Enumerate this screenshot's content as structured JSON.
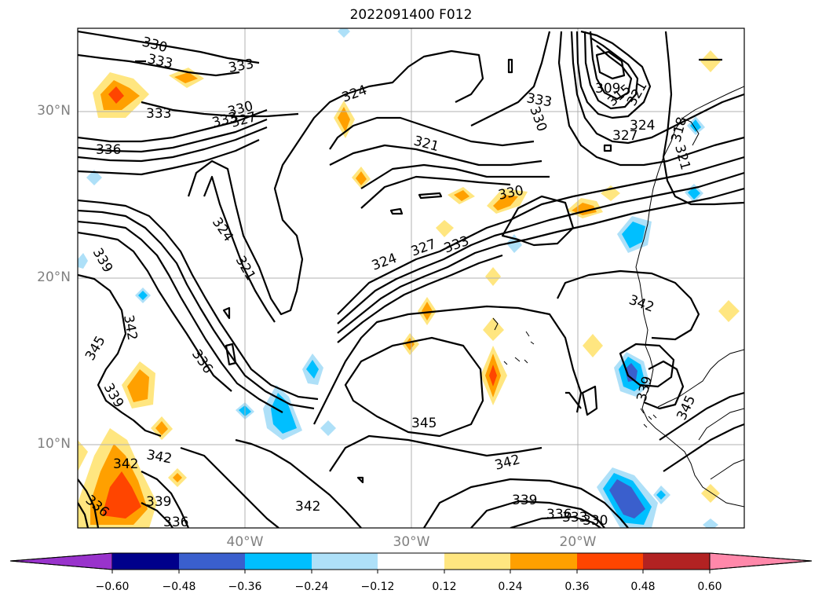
{
  "title": "2022091400 F012",
  "lat_labels": [
    "30°N",
    "20°N",
    "10°N"
  ],
  "lon_labels": [
    "40°W",
    "30°W",
    "20°W"
  ],
  "colorbar": {
    "ticks": [
      "−0.60",
      "−0.48",
      "−0.36",
      "−0.24",
      "−0.12",
      "0.12",
      "0.24",
      "0.36",
      "0.48",
      "0.60"
    ],
    "colors": [
      "#9933cc",
      "#00008b",
      "#3a5fcd",
      "#00bfff",
      "#aee0f8",
      "#ffffff",
      "#ffe680",
      "#ffa000",
      "#ff4500",
      "#b22222",
      "#ff88aa"
    ]
  },
  "contour_labels": [
    "330",
    "333",
    "333",
    "333",
    "330",
    "333",
    "327",
    "336",
    "324",
    "321",
    "324",
    "321",
    "339",
    "342",
    "345",
    "339",
    "336",
    "333",
    "309",
    "315",
    "321",
    "330",
    "324",
    "327",
    "318",
    "321",
    "324",
    "327",
    "333",
    "330",
    "342",
    "345",
    "342",
    "339",
    "336",
    "333",
    "330",
    "339",
    "345",
    "342",
    "336",
    "342",
    "342",
    "339",
    "336"
  ]
}
